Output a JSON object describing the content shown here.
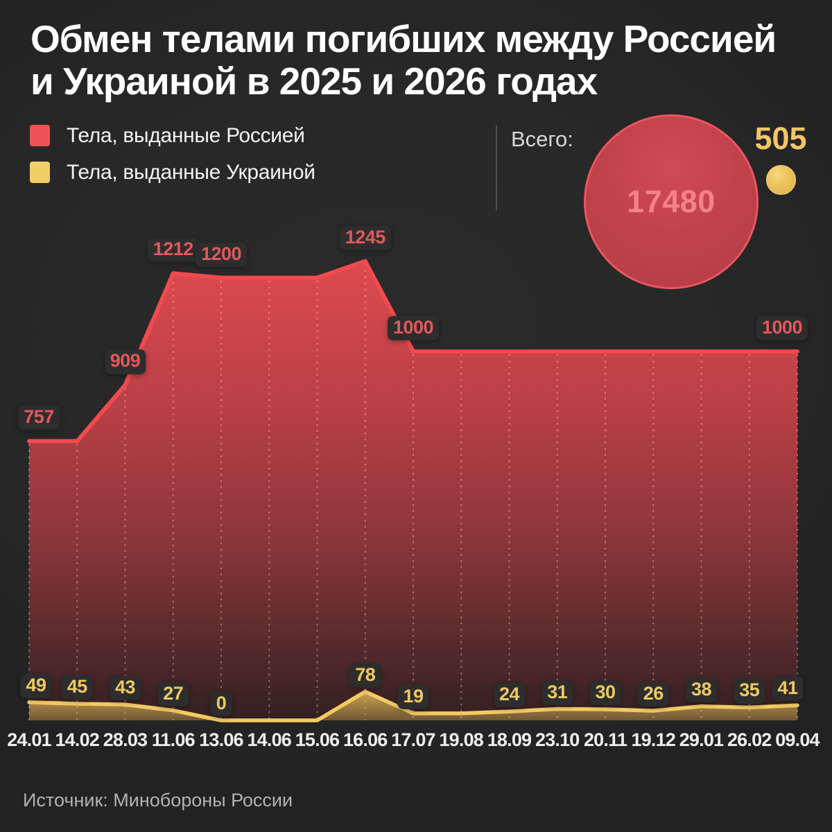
{
  "title": {
    "line1": "Обмен телами погибших между Россией",
    "line2": "и Украиной в 2025 и 2026 годах"
  },
  "legend": {
    "russia": {
      "label": "Тела, выданные Россией",
      "color": "#f05156"
    },
    "ukraine": {
      "label": "Тела, выданные Украиной",
      "color": "#f2cd68"
    }
  },
  "totals": {
    "label": "Всего:",
    "russia_total": "17480",
    "ukraine_total": "505"
  },
  "source": "Источник: Минобороны России",
  "chart_data": {
    "type": "area",
    "title": "Обмен телами погибших между Россией и Украиной в 2025 и 2026 годах",
    "categories": [
      "24.01",
      "14.02",
      "28.03",
      "11.06",
      "13.06",
      "14.06",
      "15.06",
      "16.06",
      "17.07",
      "19.08",
      "18.09",
      "23.10",
      "20.11",
      "19.12",
      "29.01",
      "26.02",
      "09.04"
    ],
    "series": [
      {
        "name": "Тела, выданные Россией",
        "color": "#f24a4e",
        "label_color": "#e2585c",
        "values": [
          757,
          757,
          909,
          1212,
          1200,
          1200,
          1200,
          1245,
          1000,
          1000,
          1000,
          1000,
          1000,
          1000,
          1000,
          1000,
          1000
        ],
        "label_indices": [
          0,
          2,
          3,
          4,
          7,
          8,
          16
        ],
        "label_dx": {
          "0": 14,
          "16": -22
        },
        "total": 17480
      },
      {
        "name": "Тела, выданные Украиной",
        "color": "#f3cb64",
        "label_color": "#eec863",
        "values": [
          49,
          45,
          43,
          27,
          0,
          0,
          0,
          78,
          19,
          19,
          24,
          31,
          30,
          26,
          38,
          35,
          41
        ],
        "label_indices": [
          0,
          1,
          2,
          3,
          4,
          7,
          8,
          10,
          11,
          12,
          13,
          14,
          15,
          16
        ],
        "label_dx": {
          "0": 10,
          "16": -14
        },
        "total": 505
      }
    ],
    "ylim": [
      0,
      1245
    ],
    "xlabel": "",
    "ylabel": "",
    "grid": "dotted-vertical",
    "legend_position": "top-left"
  }
}
